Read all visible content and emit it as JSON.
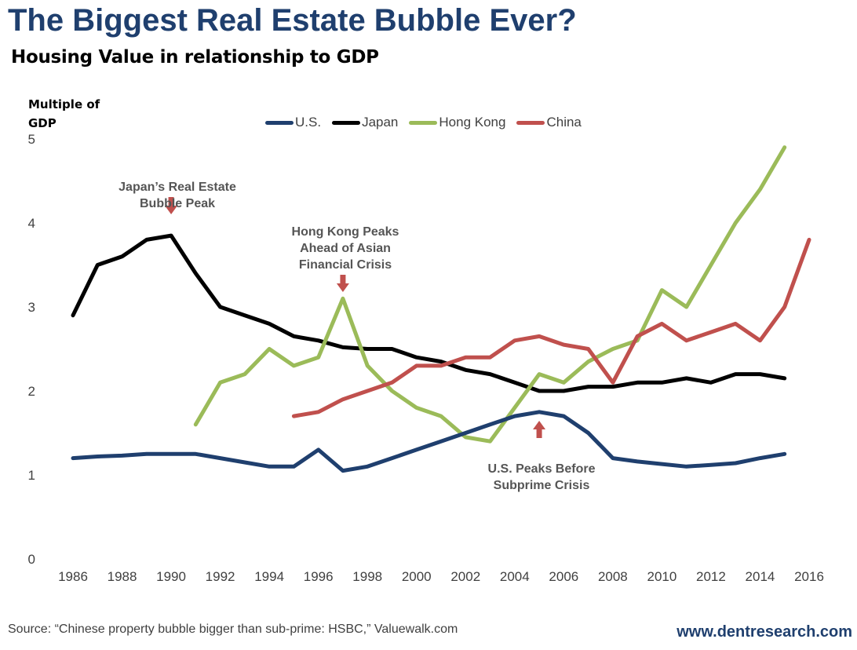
{
  "title": "The Biggest Real Estate Bubble Ever?",
  "subtitle": "Housing Value in relationship to GDP",
  "source": "Source: “Chinese property bubble bigger than sub-prime: HSBC,” Valuewalk.com",
  "website": "www.dentresearch.com",
  "chart_data": {
    "type": "line",
    "title": "The Biggest Real Estate Bubble Ever?",
    "subtitle": "Housing Value in relationship to GDP",
    "ylabel_line1": "Multiple of",
    "ylabel_line2": "GDP",
    "xlabel": "",
    "ylim": [
      0,
      5
    ],
    "xlim": [
      1986,
      2016
    ],
    "yticks": [
      "0",
      "1",
      "2",
      "3",
      "4",
      "5"
    ],
    "xticks": [
      "1986",
      "1988",
      "1990",
      "1992",
      "1994",
      "1996",
      "1998",
      "2000",
      "2002",
      "2004",
      "2006",
      "2008",
      "2010",
      "2012",
      "2014",
      "2016"
    ],
    "grid": false,
    "legend_position": "top",
    "series": [
      {
        "name": "U.S.",
        "color": "#1f3f6e",
        "x": [
          1986,
          1987,
          1988,
          1989,
          1990,
          1991,
          1992,
          1993,
          1994,
          1995,
          1996,
          1997,
          1998,
          1999,
          2000,
          2001,
          2002,
          2003,
          2004,
          2005,
          2006,
          2007,
          2008,
          2009,
          2010,
          2011,
          2012,
          2013,
          2014,
          2015
        ],
        "values": [
          1.2,
          1.22,
          1.23,
          1.25,
          1.25,
          1.25,
          1.2,
          1.15,
          1.1,
          1.1,
          1.3,
          1.05,
          1.1,
          1.2,
          1.3,
          1.4,
          1.5,
          1.6,
          1.7,
          1.75,
          1.7,
          1.5,
          1.2,
          1.16,
          1.13,
          1.1,
          1.12,
          1.14,
          1.2,
          1.25
        ]
      },
      {
        "name": "Japan",
        "color": "#000000",
        "x": [
          1986,
          1987,
          1988,
          1989,
          1990,
          1991,
          1992,
          1993,
          1994,
          1995,
          1996,
          1997,
          1998,
          1999,
          2000,
          2001,
          2002,
          2003,
          2004,
          2005,
          2006,
          2007,
          2008,
          2009,
          2010,
          2011,
          2012,
          2013,
          2014,
          2015
        ],
        "values": [
          2.9,
          3.5,
          3.6,
          3.8,
          3.85,
          3.4,
          3.0,
          2.9,
          2.8,
          2.65,
          2.6,
          2.52,
          2.5,
          2.5,
          2.4,
          2.35,
          2.25,
          2.2,
          2.1,
          2.0,
          2.0,
          2.05,
          2.05,
          2.1,
          2.1,
          2.15,
          2.1,
          2.2,
          2.2,
          2.15
        ]
      },
      {
        "name": "Hong Kong",
        "color": "#9bbb59",
        "x": [
          1991,
          1992,
          1993,
          1994,
          1995,
          1996,
          1997,
          1998,
          1999,
          2000,
          2001,
          2002,
          2003,
          2004,
          2005,
          2006,
          2007,
          2008,
          2009,
          2010,
          2011,
          2012,
          2013,
          2014,
          2015
        ],
        "values": [
          1.6,
          2.1,
          2.2,
          2.5,
          2.3,
          2.4,
          3.1,
          2.3,
          2.0,
          1.8,
          1.7,
          1.45,
          1.4,
          1.8,
          2.2,
          2.1,
          2.35,
          2.5,
          2.6,
          3.2,
          3.0,
          3.5,
          4.0,
          4.4,
          4.9
        ]
      },
      {
        "name": "China",
        "color": "#c0504d",
        "x": [
          1995,
          1996,
          1997,
          1998,
          1999,
          2000,
          2001,
          2002,
          2003,
          2004,
          2005,
          2006,
          2007,
          2008,
          2009,
          2010,
          2011,
          2012,
          2013,
          2014,
          2015,
          2016
        ],
        "values": [
          1.7,
          1.75,
          1.9,
          2.0,
          2.1,
          2.3,
          2.3,
          2.4,
          2.4,
          2.6,
          2.65,
          2.55,
          2.5,
          2.1,
          2.65,
          2.8,
          2.6,
          2.7,
          2.8,
          2.6,
          3.0,
          3.8
        ]
      }
    ],
    "annotations": [
      {
        "line1": "Japan’s Real Estate",
        "line2": "Bubble Peak",
        "x": 1990,
        "y": 3.85,
        "arrow": "down"
      },
      {
        "line1": "Hong Kong Peaks",
        "line2": "Ahead of Asian",
        "line3": "Financial Crisis",
        "x": 1997,
        "y": 3.1,
        "arrow": "down"
      },
      {
        "line1": "U.S. Peaks Before",
        "line2": "Subprime Crisis",
        "x": 2005,
        "y": 1.75,
        "arrow": "up"
      }
    ],
    "arrow_color": "#c0504d"
  }
}
